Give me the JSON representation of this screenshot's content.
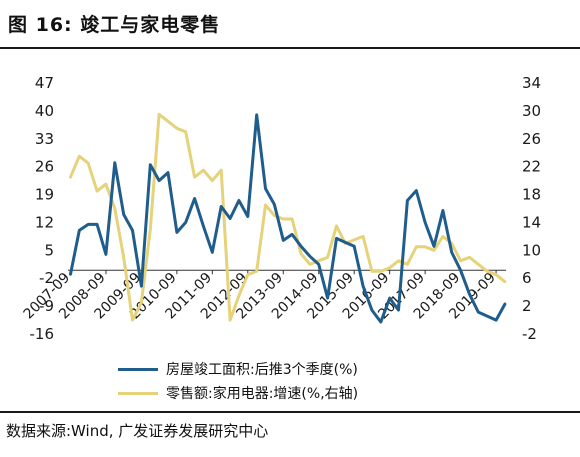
{
  "figure": {
    "title": "图 16:  竣工与家电零售",
    "source": "数据来源:Wind, 广发证券发展研究中心"
  },
  "colors": {
    "series1": "#1f5d8c",
    "series2": "#e6d27a"
  },
  "chart_data": {
    "type": "line",
    "title": "",
    "xlabel": "",
    "ylabel": "",
    "left_axis": {
      "ylim": [
        -16,
        47
      ],
      "ticks": [
        47,
        40,
        33,
        26,
        19,
        12,
        5,
        -2,
        -9,
        -16
      ]
    },
    "right_axis": {
      "ylim": [
        -2,
        34
      ],
      "ticks": [
        34,
        30,
        26,
        22,
        18,
        14,
        10,
        6,
        2,
        -2
      ]
    },
    "x_ticks": [
      "2007-09",
      "2008-09",
      "2009-09",
      "2010-09",
      "2011-09",
      "2012-09",
      "2013-09",
      "2014-09",
      "2015-09",
      "2016-09",
      "2017-09",
      "2018-09",
      "2019-09"
    ],
    "x_range": [
      2007.6,
      2019.95
    ],
    "grid": false,
    "legend_position": "bottom",
    "series": [
      {
        "name": "房屋竣工面积:后推3个季度(%)",
        "axis": "left",
        "points": [
          [
            2007.67,
            -1
          ],
          [
            2007.92,
            10
          ],
          [
            2008.17,
            11.5
          ],
          [
            2008.42,
            11.5
          ],
          [
            2008.67,
            4
          ],
          [
            2008.92,
            27
          ],
          [
            2009.17,
            14
          ],
          [
            2009.42,
            10
          ],
          [
            2009.67,
            -4
          ],
          [
            2009.92,
            26.5
          ],
          [
            2010.17,
            22.5
          ],
          [
            2010.42,
            24.5
          ],
          [
            2010.67,
            9.5
          ],
          [
            2010.92,
            12
          ],
          [
            2011.17,
            18
          ],
          [
            2011.42,
            11
          ],
          [
            2011.67,
            4.5
          ],
          [
            2011.92,
            16
          ],
          [
            2012.17,
            13
          ],
          [
            2012.42,
            17.5
          ],
          [
            2012.67,
            13.5
          ],
          [
            2012.92,
            39
          ],
          [
            2013.17,
            20.5
          ],
          [
            2013.42,
            16.5
          ],
          [
            2013.67,
            7.5
          ],
          [
            2013.92,
            9
          ],
          [
            2014.17,
            6
          ],
          [
            2014.42,
            3.5
          ],
          [
            2014.67,
            1.5
          ],
          [
            2014.92,
            -7
          ],
          [
            2015.17,
            8
          ],
          [
            2015.42,
            7
          ],
          [
            2015.67,
            6
          ],
          [
            2015.92,
            -4
          ],
          [
            2016.17,
            -10
          ],
          [
            2016.42,
            -13
          ],
          [
            2016.67,
            -7
          ],
          [
            2016.92,
            -10
          ],
          [
            2017.17,
            17.5
          ],
          [
            2017.42,
            20
          ],
          [
            2017.67,
            12
          ],
          [
            2017.92,
            6
          ],
          [
            2018.17,
            15
          ],
          [
            2018.42,
            4.5
          ],
          [
            2018.67,
            0
          ],
          [
            2018.92,
            -6
          ],
          [
            2019.17,
            -10.5
          ],
          [
            2019.42,
            -11.5
          ],
          [
            2019.67,
            -12.5
          ],
          [
            2019.92,
            -8.5
          ]
        ]
      },
      {
        "name": "零售额:家用电器:增速(%,右轴)",
        "axis": "right",
        "points": [
          [
            2007.67,
            20.5
          ],
          [
            2007.92,
            23.5
          ],
          [
            2008.17,
            22.5
          ],
          [
            2008.42,
            18.5
          ],
          [
            2008.67,
            19.5
          ],
          [
            2008.92,
            16
          ],
          [
            2009.17,
            9
          ],
          [
            2009.42,
            0
          ],
          [
            2009.67,
            2.5
          ],
          [
            2009.92,
            13
          ],
          [
            2010.17,
            29.5
          ],
          [
            2010.42,
            28.5
          ],
          [
            2010.67,
            27.5
          ],
          [
            2010.92,
            27
          ],
          [
            2011.17,
            20.5
          ],
          [
            2011.42,
            21.5
          ],
          [
            2011.67,
            20
          ],
          [
            2011.92,
            21.5
          ],
          [
            2012.17,
            0
          ],
          [
            2012.42,
            3.5
          ],
          [
            2012.67,
            6.5
          ],
          [
            2012.92,
            7
          ],
          [
            2013.17,
            16.5
          ],
          [
            2013.42,
            15
          ],
          [
            2013.67,
            14.5
          ],
          [
            2013.92,
            14.5
          ],
          [
            2014.17,
            9.5
          ],
          [
            2014.42,
            8
          ],
          [
            2014.67,
            8.5
          ],
          [
            2014.92,
            9
          ],
          [
            2015.17,
            13.5
          ],
          [
            2015.42,
            11
          ],
          [
            2015.67,
            11.5
          ],
          [
            2015.92,
            12
          ],
          [
            2016.17,
            7
          ],
          [
            2016.42,
            7
          ],
          [
            2016.67,
            7.5
          ],
          [
            2016.92,
            8.5
          ],
          [
            2017.17,
            8
          ],
          [
            2017.42,
            10.5
          ],
          [
            2017.67,
            10.5
          ],
          [
            2017.92,
            10
          ],
          [
            2018.17,
            12
          ],
          [
            2018.42,
            11
          ],
          [
            2018.67,
            8.5
          ],
          [
            2018.92,
            9
          ],
          [
            2019.17,
            8
          ],
          [
            2019.42,
            7
          ],
          [
            2019.67,
            6.5
          ],
          [
            2019.92,
            5.5
          ]
        ]
      }
    ]
  }
}
